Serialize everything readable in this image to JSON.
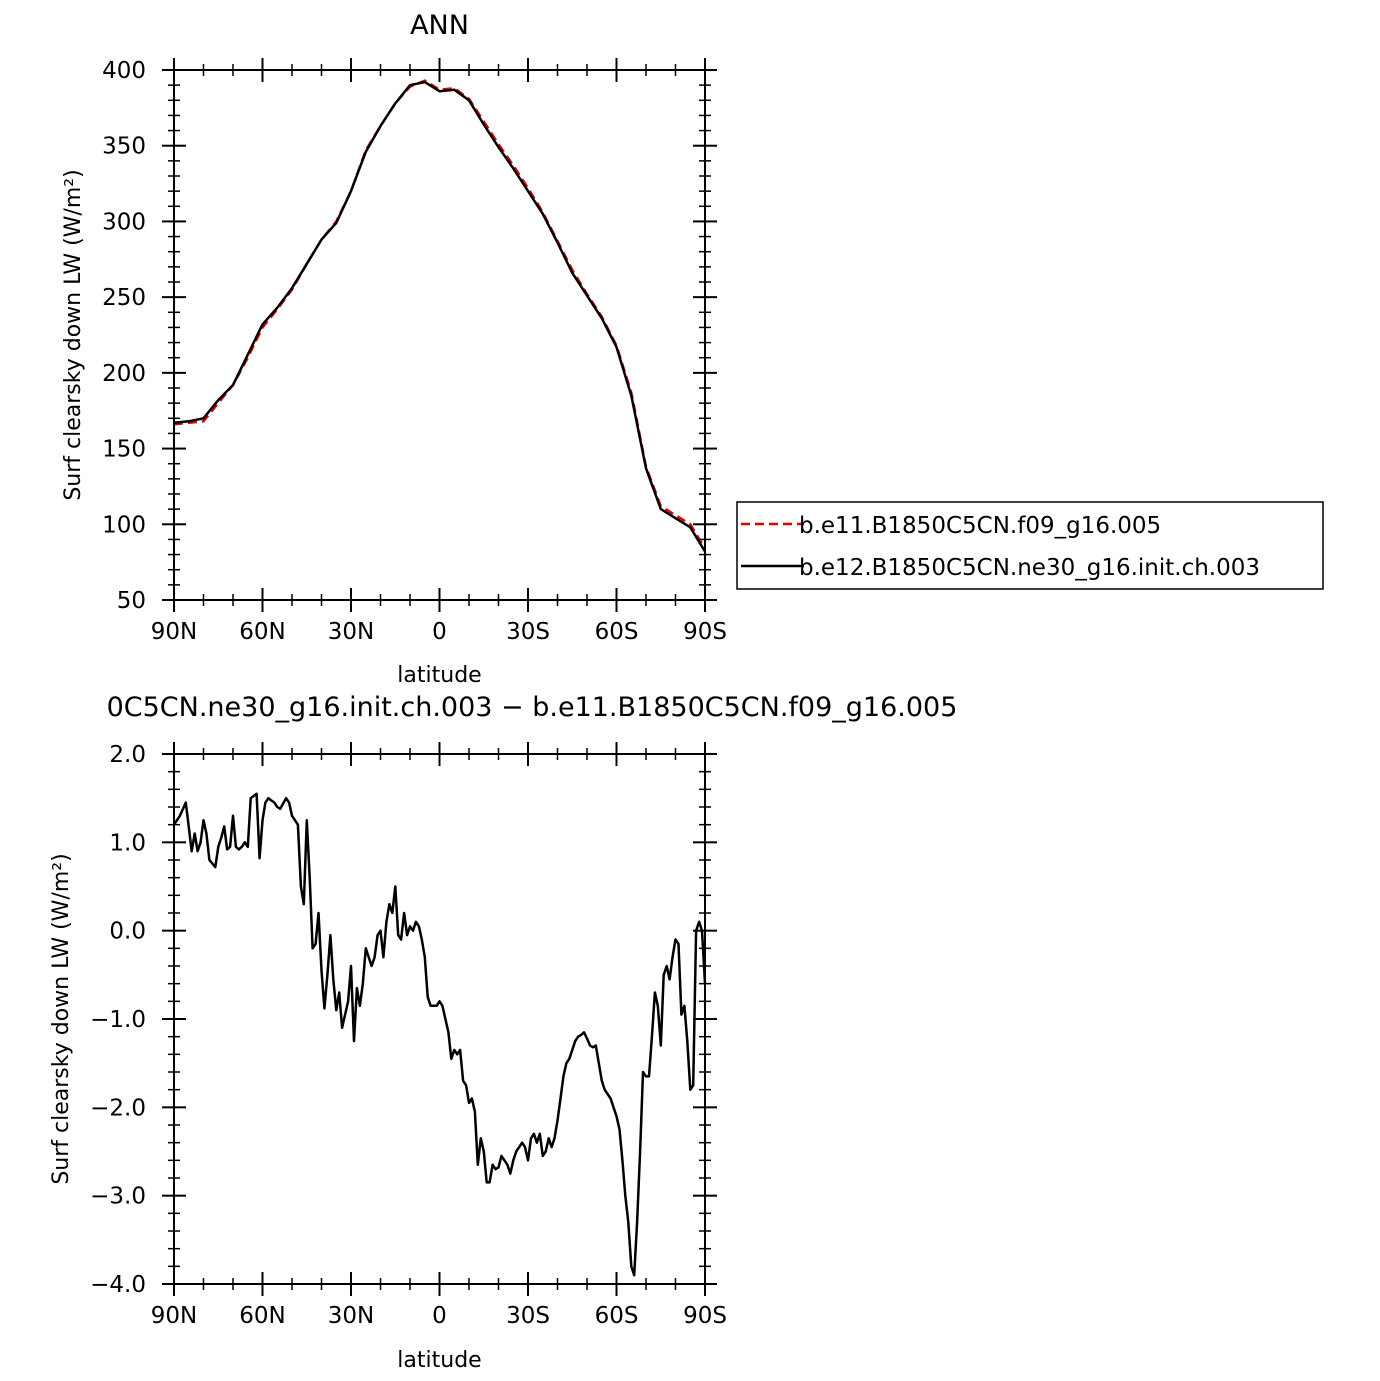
{
  "page_title": "ANN",
  "chart_data": [
    {
      "type": "line",
      "title": "ANN",
      "xlabel": "latitude",
      "ylabel": "Surf clearsky down LW (W/m²)",
      "x_tick_labels": [
        "90N",
        "60N",
        "30N",
        "0",
        "30S",
        "60S",
        "90S"
      ],
      "x_ticks": [
        -90,
        -60,
        -30,
        0,
        30,
        60,
        90
      ],
      "xlim": [
        -90,
        90
      ],
      "ylim": [
        50,
        400
      ],
      "y_ticks": [
        50,
        100,
        150,
        200,
        250,
        300,
        350,
        400
      ],
      "y_tick_labels": [
        "50",
        "100",
        "150",
        "200",
        "250",
        "300",
        "350",
        "400"
      ],
      "grid": false,
      "legend_position": "right",
      "x": [
        -90,
        -85,
        -80,
        -75,
        -70,
        -65,
        -60,
        -55,
        -50,
        -45,
        -40,
        -35,
        -30,
        -25,
        -20,
        -15,
        -10,
        -5,
        0,
        5,
        10,
        15,
        20,
        25,
        30,
        35,
        40,
        45,
        50,
        55,
        60,
        65,
        70,
        75,
        80,
        85,
        90
      ],
      "series": [
        {
          "name": "b.e11.B1850C5CN.f09_g16.005",
          "color": "#e00000",
          "dash": "dashed",
          "values": [
            166,
            167,
            168,
            180,
            192,
            210,
            230,
            242,
            255,
            272,
            288,
            300,
            320,
            347,
            363,
            378,
            389,
            393,
            387,
            388,
            381,
            366,
            351,
            337,
            322,
            306,
            287,
            268,
            252,
            237,
            218,
            187,
            138,
            112,
            106,
            100,
            84
          ]
        },
        {
          "name": "b.e12.B1850C5CN.ne30_g16.init.ch.003",
          "color": "#000000",
          "dash": "solid",
          "values": [
            167,
            168,
            170,
            182,
            192,
            212,
            232,
            243,
            256,
            272,
            288,
            299,
            320,
            346,
            363,
            378,
            390,
            392,
            386,
            387,
            380,
            364,
            349,
            335,
            320,
            305,
            286,
            266,
            251,
            236,
            217,
            185,
            137,
            110,
            104,
            98,
            82
          ]
        }
      ]
    },
    {
      "type": "line",
      "title": "0C5CN.ne30_g16.init.ch.003 − b.e11.B1850C5CN.f09_g16.005",
      "xlabel": "latitude",
      "ylabel": "Surf clearsky down LW (W/m²)",
      "x_tick_labels": [
        "90N",
        "60N",
        "30N",
        "0",
        "30S",
        "60S",
        "90S"
      ],
      "x_ticks": [
        -90,
        -60,
        -30,
        0,
        30,
        60,
        90
      ],
      "xlim": [
        -90,
        90
      ],
      "ylim": [
        -4.0,
        2.0
      ],
      "y_ticks": [
        -4.0,
        -3.0,
        -2.0,
        -1.0,
        0.0,
        1.0,
        2.0
      ],
      "y_tick_labels": [
        "−4.0",
        "−3.0",
        "−2.0",
        "−1.0",
        "0.0",
        "1.0",
        "2.0"
      ],
      "grid": false,
      "series": [
        {
          "color": "#000000",
          "dash": "solid",
          "x": [
            -90,
            -88,
            -86,
            -84,
            -83,
            -82,
            -81,
            -80,
            -79,
            -78,
            -76,
            -75,
            -74,
            -73,
            -72,
            -71,
            -70,
            -69,
            -68,
            -67,
            -66,
            -65,
            -64,
            -62,
            -61,
            -60,
            -59,
            -58,
            -56,
            -55,
            -54,
            -52,
            -51,
            -50,
            -48,
            -47,
            -46,
            -45,
            -44,
            -43,
            -42,
            -41,
            -40,
            -39,
            -38,
            -37,
            -36,
            -35,
            -34,
            -33,
            -32,
            -31,
            -30,
            -29,
            -28,
            -27,
            -26,
            -25,
            -24,
            -23,
            -22,
            -21,
            -20,
            -19,
            -18,
            -17,
            -16,
            -15,
            -14,
            -13,
            -12,
            -11,
            -10,
            -9,
            -8,
            -7,
            -6,
            -5,
            -4,
            -3,
            -2,
            -1,
            0,
            1,
            2,
            3,
            4,
            5,
            6,
            7,
            8,
            9,
            10,
            11,
            12,
            13,
            14,
            15,
            16,
            17,
            18,
            19,
            20,
            21,
            22,
            23,
            24,
            25,
            26,
            27,
            28,
            29,
            30,
            31,
            32,
            33,
            34,
            35,
            36,
            37,
            38,
            39,
            40,
            41,
            42,
            43,
            44,
            45,
            46,
            47,
            48,
            49,
            50,
            51,
            52,
            53,
            54,
            55,
            56,
            57,
            58,
            59,
            60,
            61,
            62,
            63,
            64,
            65,
            66,
            67,
            68,
            69,
            70,
            71,
            72,
            73,
            74,
            75,
            76,
            77,
            78,
            79,
            80,
            81,
            82,
            83,
            84,
            85,
            86,
            87,
            88,
            89,
            90
          ],
          "values": [
            1.2,
            1.3,
            1.45,
            0.9,
            1.1,
            0.9,
            1.0,
            1.25,
            1.1,
            0.8,
            0.72,
            0.95,
            1.05,
            1.18,
            0.92,
            0.95,
            1.3,
            0.95,
            0.92,
            0.95,
            1.0,
            0.95,
            1.5,
            1.55,
            0.82,
            1.25,
            1.45,
            1.5,
            1.45,
            1.4,
            1.38,
            1.5,
            1.45,
            1.3,
            1.2,
            0.5,
            0.3,
            1.25,
            0.6,
            -0.2,
            -0.15,
            0.2,
            -0.45,
            -0.88,
            -0.5,
            -0.05,
            -0.55,
            -0.9,
            -0.7,
            -1.1,
            -0.95,
            -0.8,
            -0.4,
            -1.25,
            -0.65,
            -0.85,
            -0.6,
            -0.2,
            -0.3,
            -0.4,
            -0.3,
            -0.05,
            0.0,
            -0.3,
            0.1,
            0.3,
            0.2,
            0.5,
            -0.05,
            -0.1,
            0.2,
            -0.05,
            0.05,
            0.0,
            0.1,
            0.05,
            -0.1,
            -0.3,
            -0.75,
            -0.85,
            -0.85,
            -0.85,
            -0.8,
            -0.85,
            -1.0,
            -1.15,
            -1.45,
            -1.35,
            -1.4,
            -1.35,
            -1.7,
            -1.75,
            -1.95,
            -1.9,
            -2.05,
            -2.65,
            -2.35,
            -2.5,
            -2.85,
            -2.85,
            -2.65,
            -2.7,
            -2.68,
            -2.55,
            -2.6,
            -2.65,
            -2.75,
            -2.6,
            -2.5,
            -2.45,
            -2.4,
            -2.45,
            -2.6,
            -2.35,
            -2.3,
            -2.4,
            -2.3,
            -2.55,
            -2.5,
            -2.35,
            -2.45,
            -2.35,
            -2.15,
            -1.9,
            -1.65,
            -1.5,
            -1.45,
            -1.35,
            -1.25,
            -1.2,
            -1.18,
            -1.15,
            -1.22,
            -1.3,
            -1.32,
            -1.3,
            -1.5,
            -1.7,
            -1.8,
            -1.85,
            -1.9,
            -2.0,
            -2.1,
            -2.25,
            -2.6,
            -3.0,
            -3.3,
            -3.8,
            -3.9,
            -3.3,
            -2.5,
            -1.6,
            -1.65,
            -1.65,
            -1.2,
            -0.7,
            -0.85,
            -1.3,
            -0.5,
            -0.4,
            -0.55,
            -0.3,
            -0.1,
            -0.15,
            -0.95,
            -0.85,
            -1.25,
            -1.8,
            -1.75,
            0.0,
            0.1,
            0.0,
            -0.6
          ]
        }
      ]
    }
  ]
}
